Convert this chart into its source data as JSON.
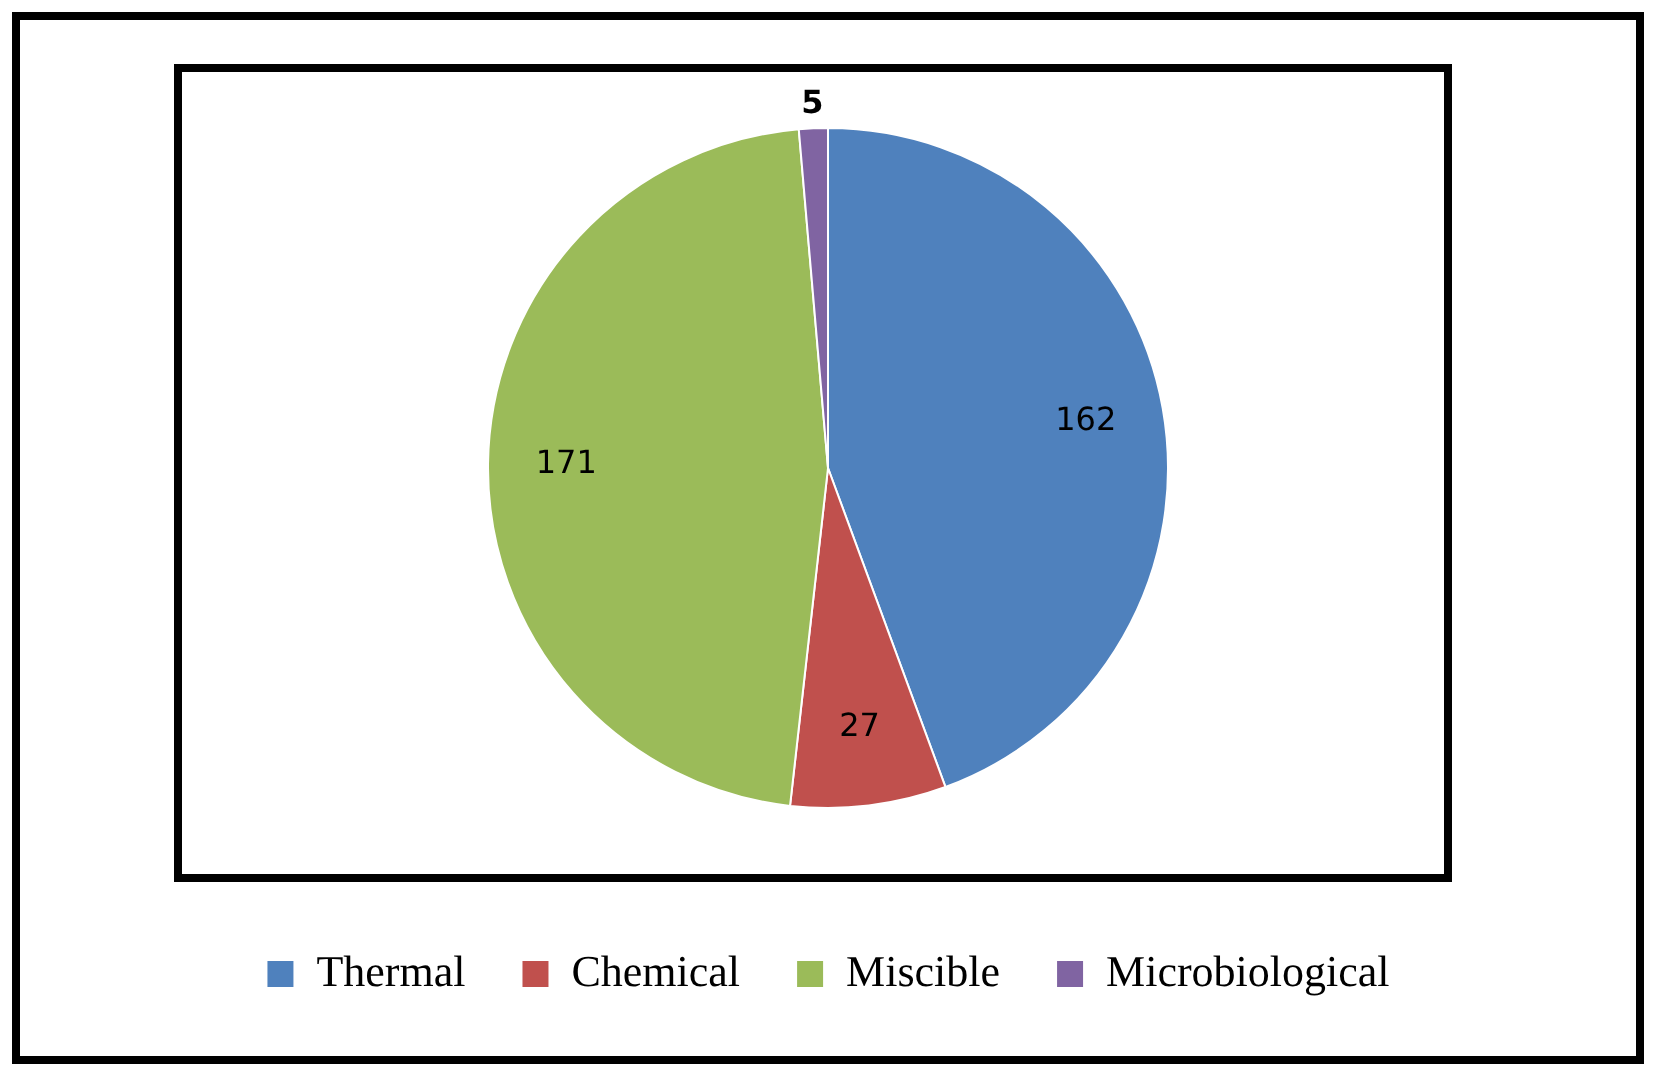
{
  "chart_data": {
    "type": "pie",
    "categories": [
      "Thermal",
      "Chemical",
      "Miscible",
      "Microbiological"
    ],
    "values": [
      162,
      27,
      171,
      5
    ],
    "colors": [
      "#4f81bd",
      "#c0504d",
      "#9bbb59",
      "#8064a2"
    ],
    "data_labels": true,
    "legend": "bottom"
  }
}
